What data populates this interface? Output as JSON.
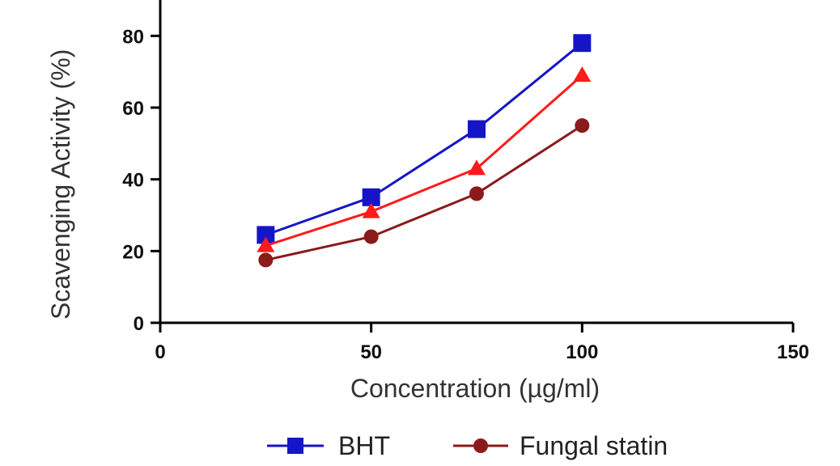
{
  "chart_data": {
    "type": "line",
    "title": "",
    "xlabel": "Concentration (µg/ml)",
    "ylabel": "Scavenging Activity (%)",
    "xlim": [
      0,
      150
    ],
    "ylim": [
      0,
      90
    ],
    "xticks": [
      "0",
      "50",
      "100",
      "150"
    ],
    "yticks": [
      "0",
      "20",
      "40",
      "60",
      "80"
    ],
    "grid": false,
    "legend_position": "bottom",
    "x": [
      25,
      50,
      75,
      100
    ],
    "series": [
      {
        "name": "BHT",
        "values": [
          24.5,
          35,
          54,
          78
        ],
        "color": "#1515c8",
        "marker": "square"
      },
      {
        "name": "",
        "values": [
          21.5,
          31,
          43,
          69
        ],
        "color": "#ff1a1a",
        "marker": "triangle"
      },
      {
        "name": "Fungal statin",
        "values": [
          17.5,
          24,
          36,
          55
        ],
        "color": "#8b1a1a",
        "marker": "circle"
      }
    ]
  }
}
